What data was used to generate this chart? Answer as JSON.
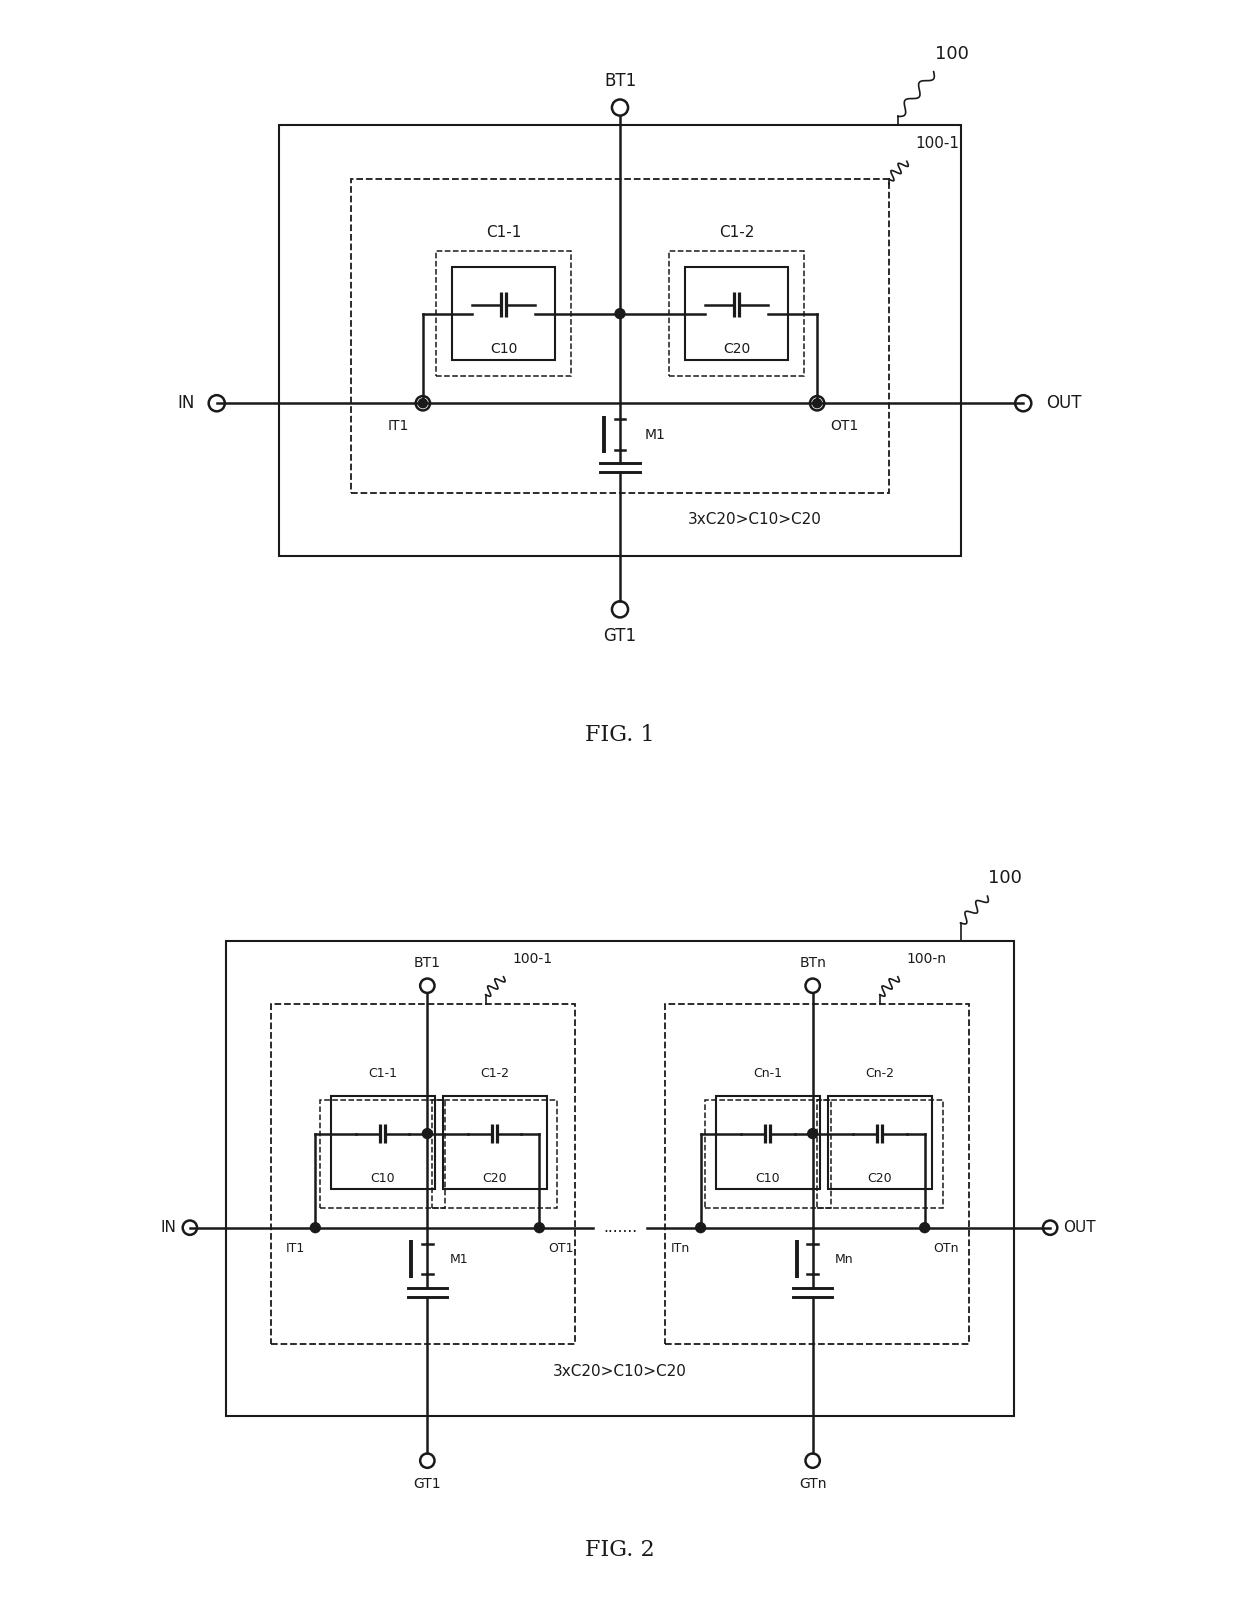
{
  "bg_color": "#ffffff",
  "line_color": "#1a1a1a",
  "fig1": {
    "title": "FIG. 1",
    "label_100": "100",
    "label_100_1": "100-1",
    "label_BT1": "BT1",
    "label_GT1": "GT1",
    "label_IN": "IN",
    "label_OUT": "OUT",
    "label_IT1": "IT1",
    "label_OT1": "OT1",
    "label_M1": "M1",
    "label_C1_1": "C1-1",
    "label_C1_2": "C1-2",
    "label_C10": "C10",
    "label_C20": "C20",
    "label_condition": "3xC20>C10>C20"
  },
  "fig2": {
    "title": "FIG. 2",
    "label_100": "100",
    "label_100_1": "100-1",
    "label_100_n": "100-n",
    "label_BT1": "BT1",
    "label_BTn": "BTn",
    "label_GT1": "GT1",
    "label_GTn": "GTn",
    "label_IN": "IN",
    "label_OUT": "OUT",
    "label_IT1": "IT1",
    "label_OT1": "OT1",
    "label_ITn": "ITn",
    "label_OTn": "OTn",
    "label_M1": "M1",
    "label_Mn": "Mn",
    "label_C1_1": "C1-1",
    "label_C1_2": "C1-2",
    "label_Cn_1": "Cn-1",
    "label_Cn_2": "Cn-2",
    "label_C10": "C10",
    "label_C20": "C20",
    "label_condition": "3xC20>C10>C20",
    "label_dots": "......."
  }
}
